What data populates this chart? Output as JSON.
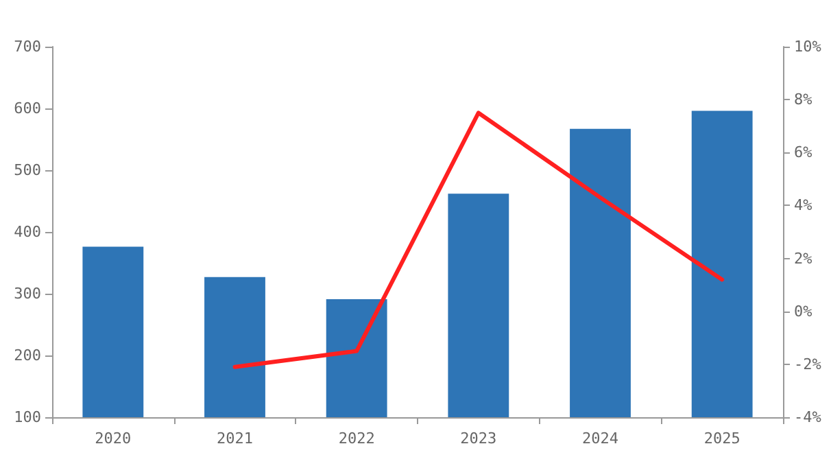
{
  "chart_data": {
    "type": "bar",
    "categories": [
      "2020",
      "2021",
      "2022",
      "2023",
      "2024",
      "2025"
    ],
    "series": [
      {
        "color": "#2e75b6",
        "values": [
          376,
          327,
          291,
          462,
          567,
          596
        ]
      },
      {
        "type": "line",
        "axis": "y2",
        "color": "#ff2020",
        "values": [
          null,
          -2.1,
          -1.5,
          7.5,
          4.3,
          1.2
        ]
      }
    ],
    "ylim": [
      100,
      700
    ],
    "yticks": [
      100,
      200,
      300,
      400,
      500,
      600,
      700
    ],
    "y2lim": [
      -4,
      10
    ],
    "y2ticks": [
      {
        "value": -4,
        "label": "-4%"
      },
      {
        "value": -2,
        "label": "-2%"
      },
      {
        "value": 0,
        "label": "0%"
      },
      {
        "value": 2,
        "label": "2%"
      },
      {
        "value": 4,
        "label": "4%"
      },
      {
        "value": 6,
        "label": "6%"
      },
      {
        "value": 8,
        "label": "8%"
      },
      {
        "value": 10,
        "label": "10%"
      }
    ],
    "grid": false,
    "marker": "none",
    "line_style": "solid"
  }
}
